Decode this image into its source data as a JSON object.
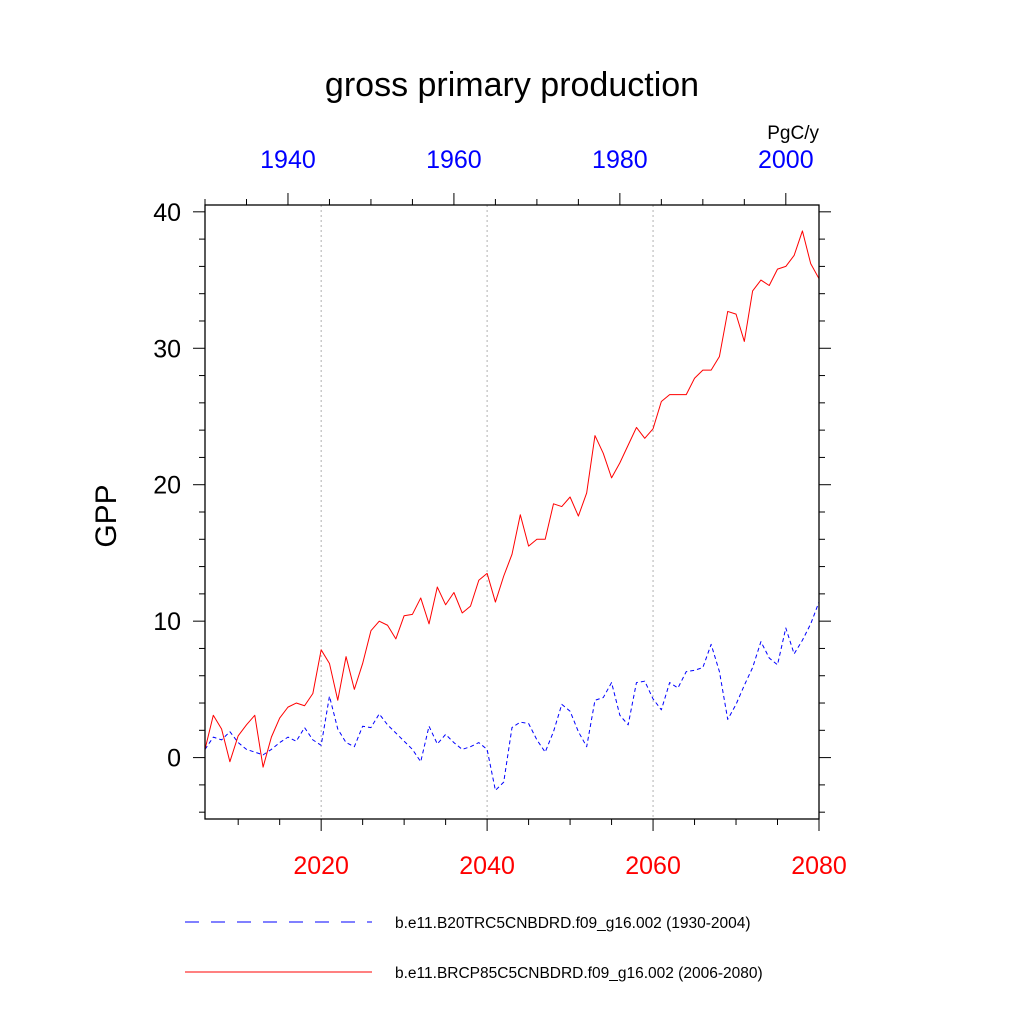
{
  "chart_data": {
    "type": "line",
    "title": "gross primary production",
    "units": "PgC/y",
    "ylabel": "GPP",
    "xlabel": "",
    "ylim": [
      -4.5,
      40.5
    ],
    "yticks": [
      0,
      10,
      20,
      30,
      40
    ],
    "x_bottom": {
      "range": [
        2006,
        2080
      ],
      "ticks": [
        2020,
        2040,
        2060,
        2080
      ],
      "color": "#ff0000"
    },
    "x_top": {
      "range": [
        1930,
        2004
      ],
      "ticks": [
        1940,
        1960,
        1980,
        2000
      ],
      "color": "#0000ff"
    },
    "grid_lines_x": [
      2020,
      2040,
      2060
    ],
    "series": [
      {
        "name": "b.e11.B20TRC5CNBDRD.f09_g16.002 (1930-2004)",
        "color": "#0000ff",
        "style": "dashed",
        "x_start": 1930,
        "values": [
          0.6,
          1.5,
          1.3,
          1.9,
          1.1,
          0.6,
          0.4,
          0.2,
          0.6,
          1.1,
          1.5,
          1.2,
          2.2,
          1.3,
          0.9,
          4.5,
          2.1,
          1.1,
          0.8,
          2.3,
          2.2,
          3.2,
          2.4,
          1.8,
          1.2,
          0.6,
          -0.3,
          2.3,
          1.0,
          1.7,
          1.1,
          0.6,
          0.8,
          1.1,
          0.6,
          -2.4,
          -1.8,
          2.2,
          2.6,
          2.5,
          1.3,
          0.4,
          1.9,
          3.9,
          3.4,
          1.9,
          0.8,
          4.2,
          4.4,
          5.5,
          3.1,
          2.4,
          5.5,
          5.6,
          4.3,
          3.5,
          5.5,
          5.1,
          6.3,
          6.4,
          6.6,
          8.3,
          6.3,
          2.8,
          3.9,
          5.3,
          6.6,
          8.5,
          7.3,
          6.8,
          9.5,
          7.6,
          8.6,
          9.8,
          11.4
        ]
      },
      {
        "name": "b.e11.BRCP85C5CNBDRD.f09_g16.002 (2006-2080)",
        "color": "#ff0000",
        "style": "solid",
        "x_start": 2006,
        "values": [
          0.6,
          3.1,
          2.1,
          -0.3,
          1.6,
          2.4,
          3.1,
          -0.7,
          1.5,
          2.9,
          3.7,
          4.0,
          3.8,
          4.7,
          7.9,
          6.9,
          4.2,
          7.4,
          5.0,
          6.9,
          9.3,
          10.0,
          9.7,
          8.7,
          10.4,
          10.5,
          11.7,
          9.8,
          12.5,
          11.2,
          12.1,
          10.6,
          11.1,
          13.0,
          13.5,
          11.4,
          13.3,
          14.9,
          17.8,
          15.5,
          16.0,
          16.0,
          18.6,
          18.4,
          19.1,
          17.7,
          19.4,
          23.6,
          22.3,
          20.5,
          21.6,
          22.9,
          24.2,
          23.4,
          24.1,
          26.1,
          26.6,
          26.6,
          26.6,
          27.8,
          28.4,
          28.4,
          29.4,
          32.7,
          32.5,
          30.5,
          34.2,
          35.0,
          34.6,
          35.8,
          36.0,
          36.8,
          38.6,
          36.2,
          35.1
        ]
      }
    ],
    "legend_position": "bottom"
  }
}
